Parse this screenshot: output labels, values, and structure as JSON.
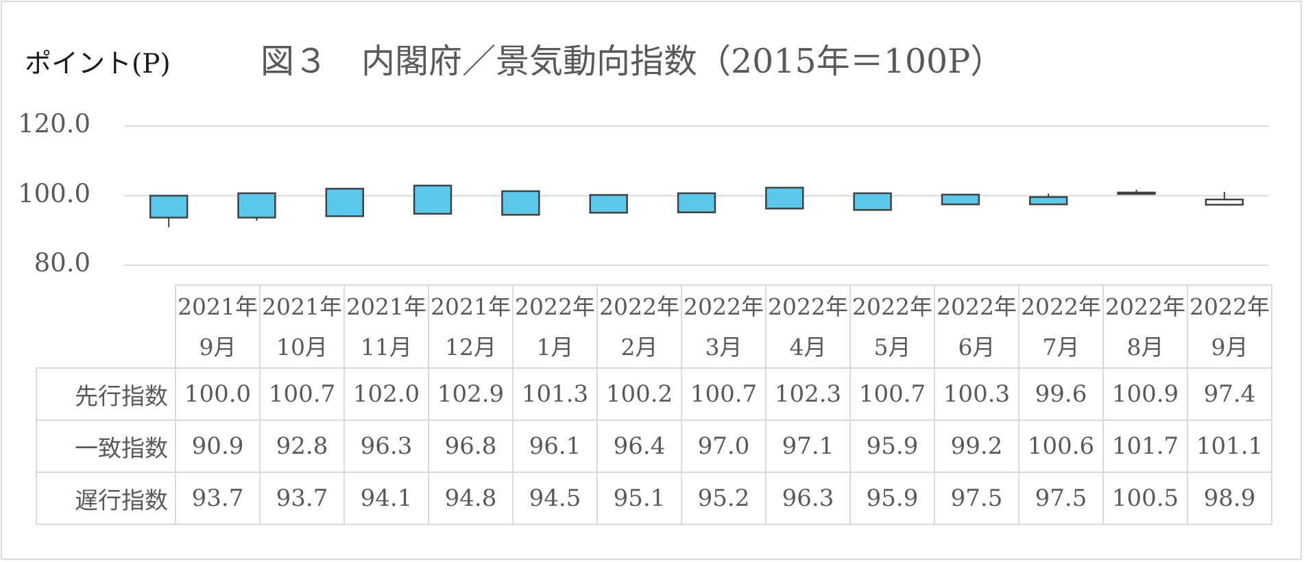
{
  "y_axis_label": "ポイント(P)",
  "title": "図３　内閣府／景気動向指数（2015年＝100P）",
  "chart_data": {
    "type": "candlestick",
    "title": "図３　内閣府／景気動向指数（2015年＝100P）",
    "ylabel": "ポイント(P)",
    "ylim": [
      80,
      120
    ],
    "y_ticks": [
      "120.0",
      "100.0",
      "80.0"
    ],
    "grid": true,
    "categories": [
      [
        "2021年",
        "9月"
      ],
      [
        "2021年",
        "10月"
      ],
      [
        "2021年",
        "11月"
      ],
      [
        "2021年",
        "12月"
      ],
      [
        "2022年",
        "1月"
      ],
      [
        "2022年",
        "2月"
      ],
      [
        "2022年",
        "3月"
      ],
      [
        "2022年",
        "4月"
      ],
      [
        "2022年",
        "5月"
      ],
      [
        "2022年",
        "6月"
      ],
      [
        "2022年",
        "7月"
      ],
      [
        "2022年",
        "8月"
      ],
      [
        "2022年",
        "9月"
      ]
    ],
    "series": [
      {
        "name": "先行指数",
        "values": [
          "100.0",
          "100.7",
          "102.0",
          "102.9",
          "101.3",
          "100.2",
          "100.7",
          "102.3",
          "100.7",
          "100.3",
          "99.6",
          "100.9",
          "97.4"
        ]
      },
      {
        "name": "一致指数",
        "values": [
          "90.9",
          "92.8",
          "96.3",
          "96.8",
          "96.1",
          "96.4",
          "97.0",
          "97.1",
          "95.9",
          "99.2",
          "100.6",
          "101.7",
          "101.1"
        ]
      },
      {
        "name": "遅行指数",
        "values": [
          "93.7",
          "93.7",
          "94.1",
          "94.8",
          "94.5",
          "95.1",
          "95.2",
          "96.3",
          "95.9",
          "97.5",
          "97.5",
          "100.5",
          "98.9"
        ]
      }
    ],
    "colors": {
      "rising_body": "#5bc8ec",
      "falling_body": "#ffffff",
      "outline": "#404040",
      "grid": "#d9d9d9"
    }
  }
}
